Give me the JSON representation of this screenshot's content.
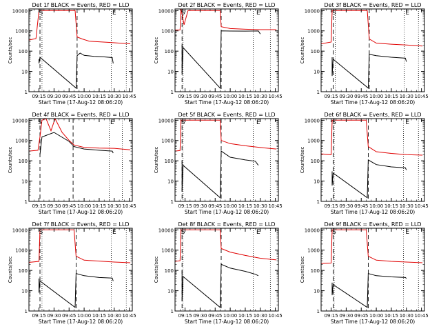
{
  "colors": {
    "events": "#000000",
    "lld": "#e00000",
    "axes": "#000000",
    "background": "#ffffff"
  },
  "common": {
    "ylabel": "Counts/sec",
    "xlabel": "Start Time (17-Aug-12 08:06:20)",
    "xticks": [
      "09:15",
      "09:30",
      "09:45",
      "10:00",
      "10:15",
      "10:30",
      "10:45"
    ],
    "yticks": [
      "1",
      "10",
      "100",
      "1000",
      "10000"
    ],
    "marker_s": "S",
    "marker_e": "E"
  },
  "chart_data": [
    {
      "type": "line",
      "title": "Det 1f BLACK = Events, RED = LLD",
      "xlim": [
        "09:05",
        "10:48"
      ],
      "ylim": [
        1,
        12000
      ],
      "yscale": "log",
      "vlines": {
        "dashed": [
          "09:16",
          "09:53"
        ],
        "dotted": [
          "09:18",
          "10:27",
          "10:42"
        ]
      },
      "markers": [
        {
          "label": "S",
          "x": "09:17"
        },
        {
          "label": "E",
          "x": "10:30"
        }
      ],
      "series": [
        {
          "name": "LLD",
          "color": "red",
          "points": [
            [
              "09:05",
              350
            ],
            [
              "09:12",
              420
            ],
            [
              "09:15",
              10000
            ],
            [
              "09:17",
              10000
            ],
            [
              "09:51",
              10000
            ],
            [
              "09:53",
              500
            ],
            [
              "09:58",
              400
            ],
            [
              "10:05",
              310
            ],
            [
              "10:15",
              290
            ],
            [
              "10:25",
              270
            ],
            [
              "10:35",
              250
            ],
            [
              "10:46",
              230
            ]
          ]
        },
        {
          "name": "Events",
          "color": "black",
          "points": [
            [
              "09:15",
              40
            ],
            [
              "09:15",
              25
            ],
            [
              "09:16",
              50
            ],
            [
              "09:52",
              1.5
            ],
            [
              "09:53",
              60
            ],
            [
              "09:56",
              80
            ],
            [
              "10:00",
              62
            ],
            [
              "10:10",
              55
            ],
            [
              "10:20",
              52
            ],
            [
              "10:28",
              48
            ],
            [
              "10:29",
              25
            ]
          ]
        }
      ]
    },
    {
      "type": "line",
      "title": "Det 2f BLACK = Events, RED = LLD",
      "xlim": [
        "09:05",
        "10:48"
      ],
      "ylim": [
        1,
        12000
      ],
      "yscale": "log",
      "vlines": {
        "dashed": [
          "09:12",
          "09:51"
        ],
        "dotted": [
          "09:13",
          "10:23",
          "10:40"
        ]
      },
      "markers": [
        {
          "label": "S",
          "x": "09:13"
        },
        {
          "label": "E",
          "x": "10:28"
        }
      ],
      "series": [
        {
          "name": "LLD",
          "color": "red",
          "points": [
            [
              "09:05",
              1100
            ],
            [
              "09:10",
              1100
            ],
            [
              "09:11",
              12000
            ],
            [
              "09:14",
              2000
            ],
            [
              "09:18",
              10000
            ],
            [
              "09:50",
              10000
            ],
            [
              "09:51",
              1600
            ],
            [
              "10:00",
              1300
            ],
            [
              "10:15",
              1200
            ],
            [
              "10:30",
              1150
            ],
            [
              "10:46",
              1150
            ]
          ]
        },
        {
          "name": "Events",
          "color": "black",
          "points": [
            [
              "09:12",
              200
            ],
            [
              "09:12",
              8
            ],
            [
              "09:13",
              150
            ],
            [
              "09:50",
              1.5
            ],
            [
              "09:51",
              1000
            ],
            [
              "10:00",
              980
            ],
            [
              "10:15",
              970
            ],
            [
              "10:28",
              990
            ],
            [
              "10:30",
              700
            ]
          ]
        }
      ]
    },
    {
      "type": "line",
      "title": "Det 3f BLACK = Events, RED = LLD",
      "xlim": [
        "09:05",
        "10:48"
      ],
      "ylim": [
        1,
        12000
      ],
      "yscale": "log",
      "vlines": {
        "dashed": [
          "09:17",
          "09:53"
        ],
        "dotted": [
          "09:19",
          "10:28",
          "10:42"
        ]
      },
      "markers": [
        {
          "label": "S",
          "x": "09:18"
        },
        {
          "label": "E",
          "x": "10:31"
        }
      ],
      "series": [
        {
          "name": "LLD",
          "color": "red",
          "points": [
            [
              "09:05",
              230
            ],
            [
              "09:15",
              280
            ],
            [
              "09:16",
              10000
            ],
            [
              "09:51",
              10000
            ],
            [
              "09:53",
              400
            ],
            [
              "10:00",
              250
            ],
            [
              "10:15",
              220
            ],
            [
              "10:30",
              200
            ],
            [
              "10:46",
              180
            ]
          ]
        },
        {
          "name": "Events",
          "color": "black",
          "points": [
            [
              "09:16",
              50
            ],
            [
              "09:16",
              6
            ],
            [
              "09:17",
              40
            ],
            [
              "09:52",
              1.5
            ],
            [
              "09:53",
              70
            ],
            [
              "10:00",
              60
            ],
            [
              "10:15",
              50
            ],
            [
              "10:29",
              45
            ],
            [
              "10:30",
              30
            ]
          ]
        }
      ]
    },
    {
      "type": "line",
      "title": "Det 4f BLACK = Events, RED = LLD",
      "xlim": [
        "09:05",
        "10:48"
      ],
      "ylim": [
        1,
        12000
      ],
      "yscale": "log",
      "vlines": {
        "dashed": [
          "09:16",
          "09:49"
        ],
        "dotted": [
          "10:25",
          "10:38"
        ]
      },
      "markers": [
        {
          "label": "S",
          "x": "09:16"
        },
        {
          "label": "E",
          "x": "10:28"
        }
      ],
      "series": [
        {
          "name": "LLD",
          "color": "red",
          "points": [
            [
              "09:05",
              300
            ],
            [
              "09:14",
              330
            ],
            [
              "09:16",
              1500
            ],
            [
              "09:18",
              10000
            ],
            [
              "09:22",
              12000
            ],
            [
              "09:27",
              3000
            ],
            [
              "09:31",
              12000
            ],
            [
              "09:38",
              2500
            ],
            [
              "09:45",
              1000
            ],
            [
              "09:50",
              600
            ],
            [
              "10:00",
              460
            ],
            [
              "10:15",
              420
            ],
            [
              "10:30",
              410
            ],
            [
              "10:46",
              350
            ]
          ]
        },
        {
          "name": "Events",
          "color": "black",
          "points": [
            [
              "09:16",
              200
            ],
            [
              "09:18",
              1500
            ],
            [
              "09:30",
              2500
            ],
            [
              "09:45",
              900
            ],
            [
              "09:50",
              500
            ],
            [
              "10:00",
              380
            ],
            [
              "10:15",
              330
            ],
            [
              "10:28",
              300
            ],
            [
              "10:29",
              240
            ]
          ]
        }
      ]
    },
    {
      "type": "line",
      "title": "Det 5f BLACK = Events, RED = LLD",
      "xlim": [
        "09:05",
        "10:48"
      ],
      "ylim": [
        1,
        12000
      ],
      "yscale": "log",
      "vlines": {
        "dashed": [
          "09:12",
          "09:51"
        ],
        "dotted": [
          "09:13",
          "10:23",
          "10:40"
        ]
      },
      "markers": [
        {
          "label": "S",
          "x": "09:13"
        },
        {
          "label": "E",
          "x": "10:28"
        }
      ],
      "series": [
        {
          "name": "LLD",
          "color": "red",
          "points": [
            [
              "09:05",
              300
            ],
            [
              "09:10",
              320
            ],
            [
              "09:11",
              10000
            ],
            [
              "09:50",
              10000
            ],
            [
              "09:51",
              1000
            ],
            [
              "10:00",
              700
            ],
            [
              "10:15",
              550
            ],
            [
              "10:30",
              450
            ],
            [
              "10:46",
              380
            ]
          ]
        },
        {
          "name": "Events",
          "color": "black",
          "points": [
            [
              "09:12",
              100
            ],
            [
              "09:12",
              3
            ],
            [
              "09:13",
              60
            ],
            [
              "09:50",
              1.5
            ],
            [
              "09:51",
              300
            ],
            [
              "10:00",
              150
            ],
            [
              "10:15",
              110
            ],
            [
              "10:25",
              95
            ],
            [
              "10:28",
              60
            ]
          ]
        }
      ]
    },
    {
      "type": "line",
      "title": "Det 6f BLACK = Events, RED = LLD",
      "xlim": [
        "09:05",
        "10:48"
      ],
      "ylim": [
        1,
        12000
      ],
      "yscale": "log",
      "vlines": {
        "dashed": [
          "09:17",
          "09:52"
        ],
        "dotted": [
          "09:18",
          "10:27",
          "10:42"
        ]
      },
      "markers": [
        {
          "label": "S",
          "x": "09:18"
        },
        {
          "label": "E",
          "x": "10:31"
        }
      ],
      "series": [
        {
          "name": "LLD",
          "color": "red",
          "points": [
            [
              "09:05",
              220
            ],
            [
              "09:15",
              200
            ],
            [
              "09:16",
              10000
            ],
            [
              "09:50",
              10000
            ],
            [
              "09:52",
              500
            ],
            [
              "10:00",
              280
            ],
            [
              "10:15",
              230
            ],
            [
              "10:30",
              200
            ],
            [
              "10:46",
              190
            ]
          ]
        },
        {
          "name": "Events",
          "color": "black",
          "points": [
            [
              "09:16",
              30
            ],
            [
              "09:16",
              6
            ],
            [
              "09:17",
              25
            ],
            [
              "09:51",
              1.5
            ],
            [
              "09:52",
              110
            ],
            [
              "10:00",
              65
            ],
            [
              "10:15",
              50
            ],
            [
              "10:29",
              45
            ],
            [
              "10:30",
              35
            ]
          ]
        }
      ]
    },
    {
      "type": "line",
      "title": "Det 7f BLACK = Events, RED = LLD",
      "xlim": [
        "09:05",
        "10:48"
      ],
      "ylim": [
        1,
        12000
      ],
      "yscale": "log",
      "vlines": {
        "dashed": [
          "09:16",
          "09:52"
        ],
        "dotted": [
          "09:18",
          "10:27",
          "10:42"
        ]
      },
      "markers": [
        {
          "label": "S",
          "x": "09:17"
        },
        {
          "label": "E",
          "x": "10:30"
        }
      ],
      "series": [
        {
          "name": "LLD",
          "color": "red",
          "points": [
            [
              "09:05",
              250
            ],
            [
              "09:15",
              280
            ],
            [
              "09:16",
              10000
            ],
            [
              "09:50",
              10000
            ],
            [
              "09:52",
              500
            ],
            [
              "10:00",
              320
            ],
            [
              "10:15",
              290
            ],
            [
              "10:30",
              260
            ],
            [
              "10:46",
              240
            ]
          ]
        },
        {
          "name": "Events",
          "color": "black",
          "points": [
            [
              "09:15",
              40
            ],
            [
              "09:15",
              8
            ],
            [
              "09:16",
              30
            ],
            [
              "09:51",
              1.5
            ],
            [
              "09:52",
              70
            ],
            [
              "10:00",
              55
            ],
            [
              "10:15",
              45
            ],
            [
              "10:28",
              42
            ],
            [
              "10:29",
              30
            ]
          ]
        }
      ]
    },
    {
      "type": "line",
      "title": "Det 8f BLACK = Events, RED = LLD",
      "xlim": [
        "09:05",
        "10:48"
      ],
      "ylim": [
        1,
        12000
      ],
      "yscale": "log",
      "vlines": {
        "dashed": [
          "09:12",
          "09:51"
        ],
        "dotted": [
          "09:13",
          "10:23",
          "10:40"
        ]
      },
      "markers": [
        {
          "label": "S",
          "x": "09:13"
        },
        {
          "label": "E",
          "x": "10:28"
        }
      ],
      "series": [
        {
          "name": "LLD",
          "color": "red",
          "points": [
            [
              "09:05",
              280
            ],
            [
              "09:10",
              300
            ],
            [
              "09:11",
              10000
            ],
            [
              "09:50",
              10000
            ],
            [
              "09:51",
              1200
            ],
            [
              "10:00",
              800
            ],
            [
              "10:15",
              550
            ],
            [
              "10:30",
              400
            ],
            [
              "10:46",
              330
            ]
          ]
        },
        {
          "name": "Events",
          "color": "black",
          "points": [
            [
              "09:12",
              100
            ],
            [
              "09:12",
              3
            ],
            [
              "09:13",
              50
            ],
            [
              "09:50",
              1.5
            ],
            [
              "09:51",
              200
            ],
            [
              "10:00",
              130
            ],
            [
              "10:15",
              90
            ],
            [
              "10:25",
              65
            ],
            [
              "10:28",
              55
            ]
          ]
        }
      ]
    },
    {
      "type": "line",
      "title": "Det 9f BLACK = Events, RED = LLD",
      "xlim": [
        "09:05",
        "10:48"
      ],
      "ylim": [
        1,
        12000
      ],
      "yscale": "log",
      "vlines": {
        "dashed": [
          "09:17",
          "09:52"
        ],
        "dotted": [
          "09:18",
          "10:27",
          "10:42"
        ]
      },
      "markers": [
        {
          "label": "S",
          "x": "09:18"
        },
        {
          "label": "E",
          "x": "10:31"
        }
      ],
      "series": [
        {
          "name": "LLD",
          "color": "red",
          "points": [
            [
              "09:05",
              220
            ],
            [
              "09:15",
              230
            ],
            [
              "09:16",
              10000
            ],
            [
              "09:50",
              10000
            ],
            [
              "09:52",
              500
            ],
            [
              "10:00",
              320
            ],
            [
              "10:15",
              280
            ],
            [
              "10:30",
              260
            ],
            [
              "10:46",
              240
            ]
          ]
        },
        {
          "name": "Events",
          "color": "black",
          "points": [
            [
              "09:16",
              25
            ],
            [
              "09:16",
              6
            ],
            [
              "09:17",
              20
            ],
            [
              "09:51",
              1.5
            ],
            [
              "09:52",
              70
            ],
            [
              "10:00",
              55
            ],
            [
              "10:15",
              48
            ],
            [
              "10:29",
              45
            ],
            [
              "10:30",
              40
            ]
          ]
        }
      ]
    }
  ]
}
